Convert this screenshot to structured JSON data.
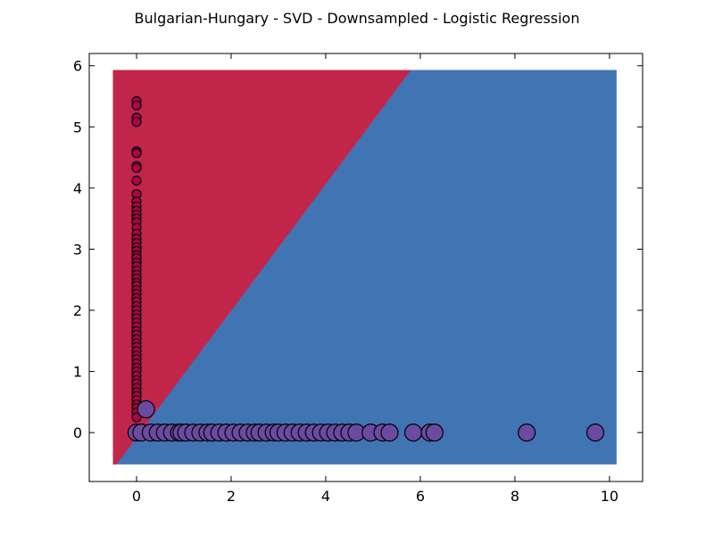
{
  "chart_data": {
    "type": "scatter",
    "title": "Bulgarian-Hungary - SVD - Downsampled - Logistic Regression",
    "xlabel": "",
    "ylabel": "",
    "xlim": [
      -1,
      10.7
    ],
    "ylim": [
      -0.8,
      6.2
    ],
    "xticks": [
      0,
      2,
      4,
      6,
      8,
      10
    ],
    "yticks": [
      0,
      1,
      2,
      3,
      4,
      5,
      6
    ],
    "grid": false,
    "legend": "none",
    "decision_regions": {
      "extent_x": [
        -0.5,
        10.15
      ],
      "extent_y": [
        -0.52,
        5.93
      ],
      "boundary": [
        [
          -0.5,
          -0.52
        ],
        [
          5.8,
          5.93
        ]
      ],
      "class_a_color": "#c1264a",
      "class_b_color": "#4174b3"
    },
    "series": [
      {
        "color": "#b0004a",
        "marker_size": "small",
        "points": [
          [
            0,
            5.42
          ],
          [
            0,
            5.35
          ],
          [
            0,
            5.15
          ],
          [
            0,
            5.08
          ],
          [
            0,
            4.6
          ],
          [
            0,
            4.57
          ],
          [
            0,
            4.36
          ],
          [
            0,
            4.33
          ],
          [
            0,
            4.12
          ],
          [
            0,
            3.9
          ],
          [
            0,
            3.78
          ],
          [
            0,
            3.7
          ],
          [
            0,
            3.63
          ],
          [
            0,
            3.56
          ],
          [
            0,
            3.5
          ],
          [
            0,
            3.44
          ],
          [
            0,
            3.35
          ],
          [
            0,
            3.25
          ],
          [
            0,
            3.17
          ],
          [
            0,
            3.1
          ],
          [
            0,
            3.03
          ],
          [
            0,
            2.97
          ],
          [
            0,
            2.9
          ],
          [
            0,
            2.85
          ],
          [
            0,
            2.78
          ],
          [
            0,
            2.72
          ],
          [
            0,
            2.65
          ],
          [
            0,
            2.58
          ],
          [
            0,
            2.52
          ],
          [
            0,
            2.45
          ],
          [
            0,
            2.4
          ],
          [
            0,
            2.33
          ],
          [
            0,
            2.27
          ],
          [
            0,
            2.2
          ],
          [
            0,
            2.14
          ],
          [
            0,
            2.07
          ],
          [
            0,
            2.0
          ],
          [
            0,
            1.93
          ],
          [
            0,
            1.87
          ],
          [
            0,
            1.8
          ],
          [
            0,
            1.73
          ],
          [
            0,
            1.66
          ],
          [
            0,
            1.6
          ],
          [
            0,
            1.53
          ],
          [
            0,
            1.46
          ],
          [
            0,
            1.4
          ],
          [
            0,
            1.33
          ],
          [
            0,
            1.26
          ],
          [
            0,
            1.2
          ],
          [
            0,
            1.13
          ],
          [
            0,
            1.06
          ],
          [
            0,
            1.0
          ],
          [
            0,
            0.93
          ],
          [
            0,
            0.86
          ],
          [
            0,
            0.8
          ],
          [
            0,
            0.73
          ],
          [
            0,
            0.66
          ],
          [
            0,
            0.6
          ],
          [
            0,
            0.53
          ],
          [
            0,
            0.46
          ],
          [
            0,
            0.4
          ],
          [
            0,
            0.33
          ],
          [
            0,
            0.25
          ]
        ]
      },
      {
        "color": "#6a4ba1",
        "marker_size": "large",
        "points": [
          [
            0.2,
            0.38
          ],
          [
            0,
            0
          ],
          [
            0.1,
            0
          ],
          [
            0.3,
            0
          ],
          [
            0.45,
            0
          ],
          [
            0.6,
            0
          ],
          [
            0.75,
            0
          ],
          [
            0.9,
            0
          ],
          [
            0.95,
            0
          ],
          [
            1.05,
            0
          ],
          [
            1.2,
            0
          ],
          [
            1.35,
            0
          ],
          [
            1.5,
            0
          ],
          [
            1.6,
            0
          ],
          [
            1.75,
            0
          ],
          [
            1.9,
            0
          ],
          [
            2.05,
            0
          ],
          [
            2.2,
            0
          ],
          [
            2.35,
            0
          ],
          [
            2.5,
            0
          ],
          [
            2.6,
            0
          ],
          [
            2.75,
            0
          ],
          [
            2.9,
            0
          ],
          [
            3.0,
            0
          ],
          [
            3.15,
            0
          ],
          [
            3.3,
            0
          ],
          [
            3.45,
            0
          ],
          [
            3.6,
            0
          ],
          [
            3.75,
            0
          ],
          [
            3.9,
            0
          ],
          [
            4.05,
            0
          ],
          [
            4.2,
            0
          ],
          [
            4.35,
            0
          ],
          [
            4.5,
            0
          ],
          [
            4.65,
            0
          ],
          [
            4.95,
            0
          ],
          [
            5.2,
            0
          ],
          [
            5.35,
            0
          ],
          [
            5.85,
            0
          ],
          [
            6.2,
            0
          ],
          [
            6.3,
            0
          ],
          [
            8.25,
            0
          ],
          [
            9.7,
            0
          ]
        ]
      }
    ]
  }
}
